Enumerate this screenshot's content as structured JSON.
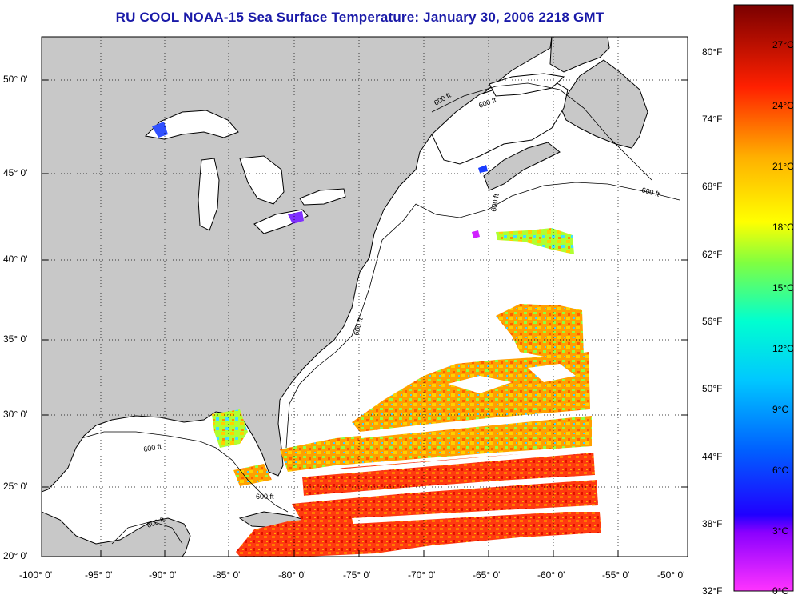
{
  "title": "RU COOL  NOAA-15  Sea Surface Temperature:  January 30, 2006 2218 GMT",
  "map": {
    "lat_ticks": [
      "50° 0'",
      "45° 0'",
      "40° 0'",
      "35° 0'",
      "30° 0'",
      "25° 0'",
      "20° 0'"
    ],
    "lon_ticks": [
      "-100° 0'",
      "-95° 0'",
      "-90° 0'",
      "-85° 0'",
      "-80° 0'",
      "-75° 0'",
      "-70° 0'",
      "-65° 0'",
      "-60° 0'",
      "-55° 0'",
      "-50° 0'"
    ],
    "isobath_labels": [
      "600 ft",
      "600 ft",
      "600 ft",
      "600 ft",
      "600 ft",
      "600 ft",
      "600 ft",
      "600 ft"
    ],
    "colors": {
      "land": "#c8c8c8",
      "ocean": "#ffffff",
      "grid": "#000000"
    }
  },
  "colorbar": {
    "fahrenheit_labels": [
      "80°F",
      "74°F",
      "68°F",
      "62°F",
      "56°F",
      "50°F",
      "44°F",
      "38°F",
      "32°F"
    ],
    "celsius_labels": [
      "27°C",
      "24°C",
      "21°C",
      "18°C",
      "15°C",
      "12°C",
      "9°C",
      "6°C",
      "3°C",
      "0°C"
    ],
    "range_celsius": [
      0,
      28
    ],
    "range_fahrenheit": [
      32,
      82
    ],
    "stops": [
      "#ff33ff",
      "#8800ff",
      "#0000ff",
      "#00aaff",
      "#00ffff",
      "#00ff88",
      "#ffff00",
      "#ffaa00",
      "#ff3300",
      "#880000"
    ]
  }
}
